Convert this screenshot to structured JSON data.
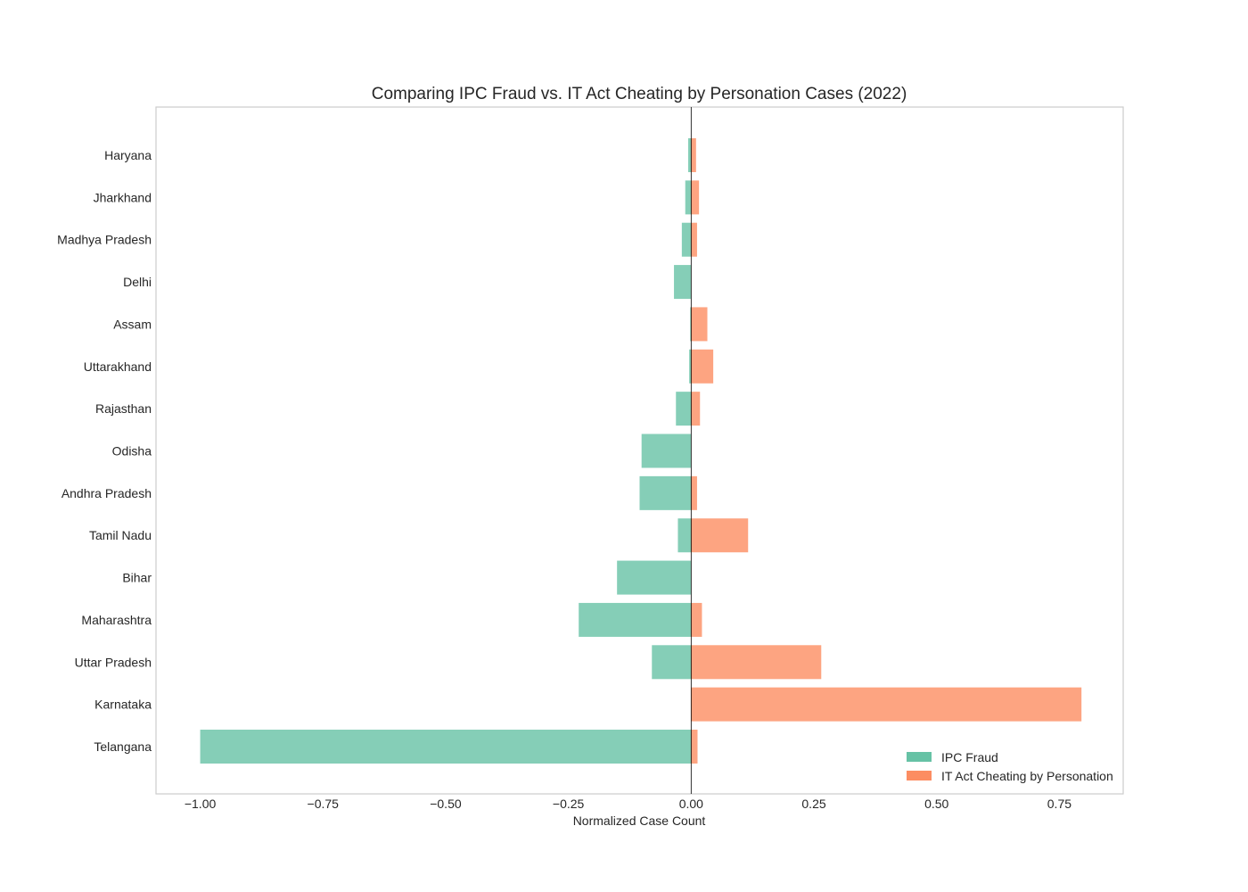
{
  "chart_data": {
    "type": "bar",
    "orientation": "horizontal",
    "title": "Comparing IPC Fraud vs. IT Act Cheating by Personation Cases (2022)",
    "xlabel": "Normalized Case Count",
    "ylabel": "",
    "xlim": [
      -1.09,
      0.88
    ],
    "xticks": [
      -1.0,
      -0.75,
      -0.5,
      -0.25,
      0.0,
      0.25,
      0.5,
      0.75
    ],
    "xtick_labels": [
      "−1.00",
      "−0.75",
      "−0.50",
      "−0.25",
      "0.00",
      "0.25",
      "0.50",
      "0.75"
    ],
    "grid": false,
    "legend": "bottom-right",
    "categories": [
      "Haryana",
      "Jharkhand",
      "Madhya Pradesh",
      "Delhi",
      "Assam",
      "Uttarakhand",
      "Rajasthan",
      "Odisha",
      "Andhra Pradesh",
      "Tamil Nadu",
      "Bihar",
      "Maharashtra",
      "Uttar Pradesh",
      "Karnataka",
      "Telangana"
    ],
    "series": [
      {
        "name": "IPC Fraud",
        "color": "#66c2a5",
        "values": [
          -0.006,
          -0.012,
          -0.019,
          -0.035,
          -0.002,
          -0.004,
          -0.031,
          -0.101,
          -0.105,
          -0.027,
          -0.151,
          -0.229,
          -0.08,
          0.0,
          -1.0
        ]
      },
      {
        "name": "IT Act Cheating by Personation",
        "color": "#fc8d62",
        "values": [
          0.01,
          0.016,
          0.012,
          0.0,
          0.033,
          0.045,
          0.018,
          0.0,
          0.012,
          0.116,
          0.0,
          0.022,
          0.265,
          0.795,
          0.013
        ]
      }
    ]
  }
}
